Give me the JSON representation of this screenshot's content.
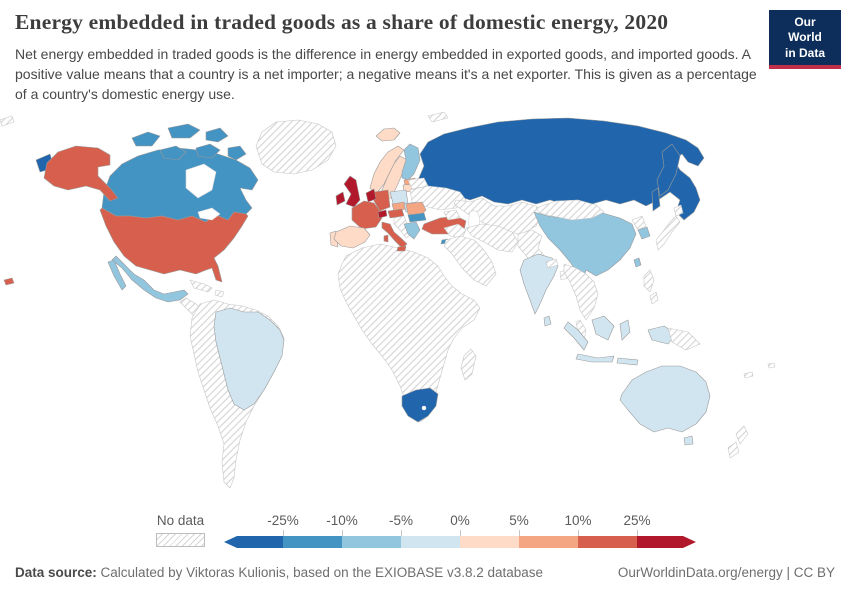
{
  "header": {
    "title": "Energy embedded in traded goods as a share of domestic energy, 2020",
    "subtitle": "Net energy embedded in traded goods is the difference in energy embedded in exported goods, and imported goods. A positive value means that a country is a net importer; a negative means it's a net exporter. This is given as a percentage of a country's domestic energy use.",
    "logo_line1": "Our World",
    "logo_line2": "in Data"
  },
  "colors": {
    "logo_background": "#0d2e5b",
    "logo_accent": "#c0304a",
    "no_data_border": "#bdbdbd",
    "text_gray": "#5b5b5b"
  },
  "chart_data": {
    "type": "choropleth_map",
    "title": "Energy embedded in traded goods as a share of domestic energy, 2020",
    "year": "2020",
    "unit": "% of domestic energy use",
    "no_data_label": "No data",
    "tick_labels": [
      "-25%",
      "-10%",
      "-5%",
      "0%",
      "5%",
      "10%",
      "25%"
    ],
    "legend_bins": [
      {
        "label": "< -25%",
        "color": "#2166ac"
      },
      {
        "label": "-25% to -10%",
        "color": "#4393c3"
      },
      {
        "label": "-10% to -5%",
        "color": "#92c5de"
      },
      {
        "label": "-5% to 0%",
        "color": "#d1e5f0"
      },
      {
        "label": "0% to 5%",
        "color": "#fddbc7"
      },
      {
        "label": "5% to 10%",
        "color": "#f4a582"
      },
      {
        "label": "10% to 25%",
        "color": "#d6604d"
      },
      {
        "label": "> 25%",
        "color": "#b2182b"
      }
    ],
    "entities": {
      "russia": "< -25%",
      "south-africa": "< -25%",
      "canada": "-25% to -10%",
      "bulgaria": "-25% to -10%",
      "cyprus": "-25% to -10%",
      "mexico": "-10% to -5%",
      "china": "-10% to -5%",
      "finland": "-10% to -5%",
      "greece": "-10% to -5%",
      "south-korea": "-10% to -5%",
      "taiwan": "-10% to -5%",
      "brazil": "-5% to 0%",
      "india": "-5% to 0%",
      "australia": "-5% to 0%",
      "indonesia": "-5% to 0%",
      "poland": "-5% to 0%",
      "hungary": "-5% to 0%",
      "sri-lanka": "-5% to 0%",
      "spain": "0% to 5%",
      "portugal": "0% to 5%",
      "norway": "0% to 5%",
      "sweden": "0% to 5%",
      "iceland": "0% to 5%",
      "latvia-lithuania": "0% to 5%",
      "estonia": "5% to 10%",
      "czechia": "5% to 10%",
      "romania": "5% to 10%",
      "united-states": "10% to 25%",
      "france": "10% to 25%",
      "germany": "10% to 25%",
      "italy": "10% to 25%",
      "austria": "10% to 25%",
      "turkey": "10% to 25%",
      "united-kingdom": "> 25%",
      "ireland": "> 25%",
      "belgium-netherlands": "> 25%",
      "switzerland": "> 25%",
      "denmark": "> 25%",
      "greenland": "No data",
      "central-america": "No data",
      "caribbean": "No data",
      "south-america-other": "No data",
      "africa": "No data",
      "madagascar": "No data",
      "ukraine": "No data",
      "belarus": "No data",
      "western-balkans": "No data",
      "kazakhstan-central-asia": "No data",
      "caucasus": "No data",
      "middle-east-arabia": "No data",
      "iran": "No data",
      "iraq-syria": "No data",
      "afghanistan-pakistan": "No data",
      "mongolia": "No data",
      "japan": "No data",
      "north-korea": "No data",
      "nepal": "No data",
      "bangladesh": "No data",
      "southeast-asia": "No data",
      "philippines": "No data",
      "papua-new-guinea": "No data",
      "new-zealand": "No data",
      "svalbard": "No data",
      "wrangel": "No data",
      "pacific-islands": "No data"
    }
  },
  "footer": {
    "source_label": "Data source:",
    "source_text": "Calculated by Viktoras Kulionis, based on the EXIOBASE v3.8.2 database",
    "url": "OurWorldinData.org/energy",
    "separator": " | ",
    "license": "CC BY"
  }
}
